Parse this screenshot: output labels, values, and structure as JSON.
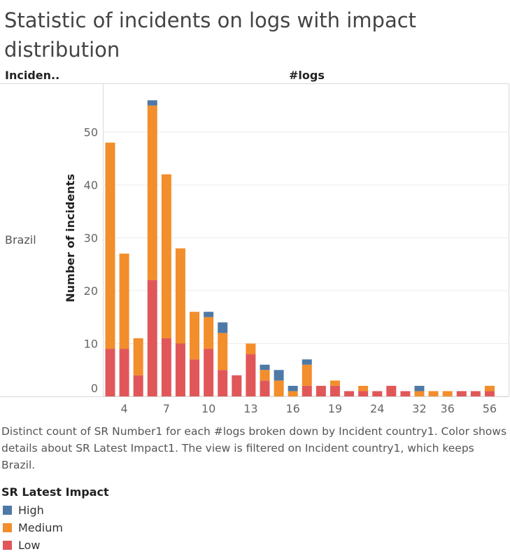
{
  "title": "Statistic of incidents on logs with impact distribution",
  "row_header": "Inciden..",
  "column_header": "#logs",
  "row_label": "Brazil",
  "caption": "Distinct count of SR Number1 for each #logs broken down by Incident country1.  Color shows details about SR Latest Impact1. The view is filtered on Incident country1, which keeps Brazil.",
  "legend": {
    "title": "SR Latest Impact",
    "items": [
      {
        "label": "High",
        "color": "#4e79a7"
      },
      {
        "label": "Medium",
        "color": "#f28e2b"
      },
      {
        "label": "Low",
        "color": "#e15759"
      }
    ]
  },
  "chart_data": {
    "type": "bar",
    "stacked": true,
    "ylabel": "Number of incidents",
    "xlabel": "",
    "ylim": [
      0,
      59
    ],
    "yticks": [
      0,
      10,
      20,
      30,
      40,
      50
    ],
    "grid": true,
    "categories": [
      "3",
      "4",
      "5",
      "6",
      "7",
      "8",
      "9",
      "10",
      "11",
      "12",
      "13",
      "14",
      "15",
      "16",
      "17",
      "18",
      "19",
      "20",
      "22",
      "24",
      "27",
      "30",
      "32",
      "34",
      "36",
      "40",
      "48",
      "56"
    ],
    "xtick_labels": [
      "4",
      "7",
      "10",
      "13",
      "16",
      "19",
      "24",
      "32",
      "36",
      "56"
    ],
    "xtick_positions": [
      "4",
      "7",
      "10",
      "13",
      "16",
      "19",
      "24",
      "32",
      "36",
      "56"
    ],
    "series": [
      {
        "name": "Low",
        "color": "#e15759",
        "values": [
          9,
          9,
          4,
          22,
          11,
          10,
          7,
          9,
          5,
          4,
          8,
          3,
          0,
          0,
          2,
          2,
          2,
          1,
          1,
          1,
          2,
          1,
          0,
          0,
          0,
          1,
          1,
          1
        ]
      },
      {
        "name": "Medium",
        "color": "#f28e2b",
        "values": [
          39,
          18,
          7,
          33,
          31,
          18,
          9,
          6,
          7,
          0,
          2,
          2,
          3,
          1,
          4,
          0,
          1,
          0,
          1,
          0,
          0,
          0,
          1,
          1,
          1,
          0,
          0,
          1
        ]
      },
      {
        "name": "High",
        "color": "#4e79a7",
        "values": [
          0,
          0,
          0,
          1,
          0,
          0,
          0,
          1,
          2,
          0,
          0,
          1,
          2,
          1,
          1,
          0,
          0,
          0,
          0,
          0,
          0,
          0,
          1,
          0,
          0,
          0,
          0,
          0
        ]
      }
    ]
  }
}
